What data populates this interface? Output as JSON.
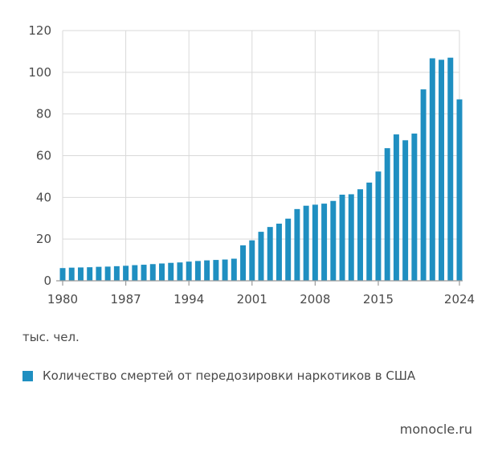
{
  "chart_data": {
    "type": "bar",
    "x": [
      1980,
      1981,
      1982,
      1983,
      1984,
      1985,
      1986,
      1987,
      1988,
      1989,
      1990,
      1991,
      1992,
      1993,
      1994,
      1995,
      1996,
      1997,
      1998,
      1999,
      2000,
      2001,
      2002,
      2003,
      2004,
      2005,
      2006,
      2007,
      2008,
      2009,
      2010,
      2011,
      2012,
      2013,
      2014,
      2015,
      2016,
      2017,
      2018,
      2019,
      2020,
      2021,
      2022,
      2023,
      2024
    ],
    "series": [
      {
        "values": [
          6.1,
          6.3,
          6.4,
          6.5,
          6.7,
          6.8,
          7.0,
          7.2,
          7.5,
          7.7,
          8.0,
          8.3,
          8.6,
          8.8,
          9.2,
          9.5,
          9.8,
          10.0,
          10.2,
          10.6,
          17.0,
          19.4,
          23.5,
          25.8,
          27.4,
          29.8,
          34.4,
          36.0,
          36.5,
          37.0,
          38.3,
          41.3,
          41.5,
          43.9,
          47.1,
          52.4,
          63.6,
          70.2,
          67.4,
          70.6,
          91.8,
          106.7,
          106.0,
          107.0,
          87.0
        ]
      }
    ],
    "x_ticks": [
      "1980",
      "1987",
      "1994",
      "2001",
      "2008",
      "2015",
      "2024"
    ],
    "y_ticks": [
      "0",
      "20",
      "40",
      "60",
      "80",
      "100",
      "120"
    ],
    "ylim": [
      0,
      120
    ],
    "grid": true,
    "bar_color": "#1f8fc1",
    "ylabel": "тыс. чел.",
    "legend": "Количество смертей от передозировки наркотиков в США"
  },
  "source": "monocle.ru"
}
